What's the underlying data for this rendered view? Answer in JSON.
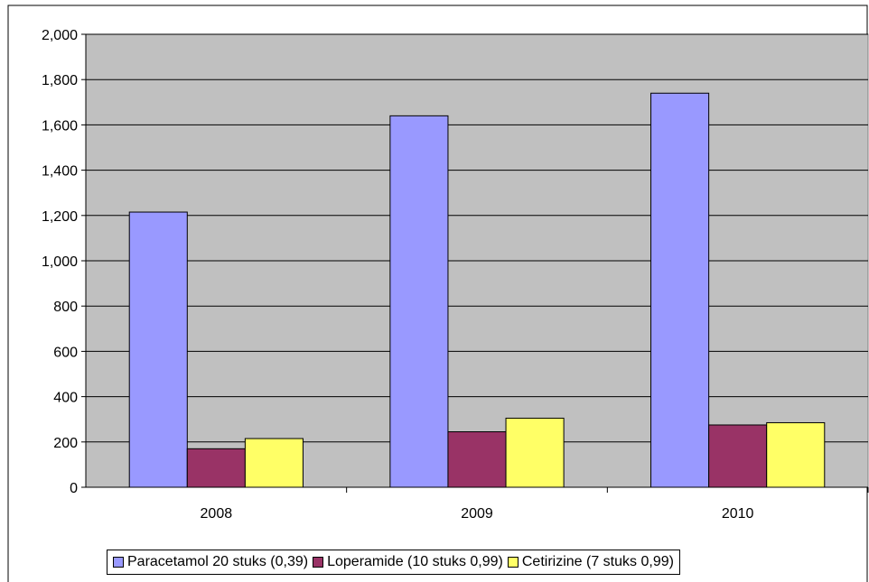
{
  "chart_data": {
    "type": "bar",
    "categories": [
      "2008",
      "2009",
      "2010"
    ],
    "series": [
      {
        "name": "Paracetamol 20 stuks (0,39)",
        "values": [
          1215,
          1640,
          1740
        ],
        "color": "#9999ff"
      },
      {
        "name": "Loperamide (10 stuks 0,99)",
        "values": [
          170,
          245,
          275
        ],
        "color": "#993366"
      },
      {
        "name": "Cetirizine (7 stuks 0,99)",
        "values": [
          215,
          305,
          285
        ],
        "color": "#ffff66"
      }
    ],
    "yticks": [
      "0",
      "200",
      "400",
      "600",
      "800",
      "1,000",
      "1,200",
      "1,400",
      "1,600",
      "1,800",
      "2,000"
    ],
    "ylim": [
      0,
      2000
    ],
    "grid": true,
    "plot_background": "#c0c0c0",
    "legend_position": "bottom",
    "title": "",
    "xlabel": "",
    "ylabel": ""
  }
}
